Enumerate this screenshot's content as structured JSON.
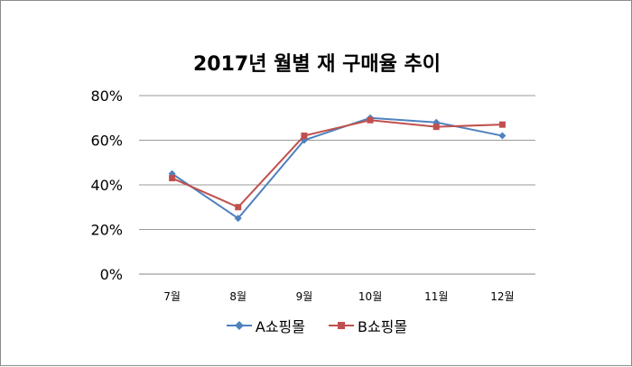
{
  "chart_data": {
    "type": "line",
    "title": "2017년 월별 재 구매율 추이",
    "categories": [
      "7월",
      "8월",
      "9월",
      "10월",
      "11월",
      "12월"
    ],
    "ylim": [
      0,
      80
    ],
    "yticks": [
      "0%",
      "20%",
      "40%",
      "60%",
      "80%"
    ],
    "grid": true,
    "legend_position": "bottom",
    "series": [
      {
        "name": "A쇼핑몰",
        "values": [
          45,
          25,
          60,
          70,
          68,
          62
        ],
        "color": "#4f81bd",
        "marker": "diamond"
      },
      {
        "name": "B쇼핑몰",
        "values": [
          43,
          30,
          62,
          69,
          66,
          67
        ],
        "color": "#c0504d",
        "marker": "square"
      }
    ]
  }
}
